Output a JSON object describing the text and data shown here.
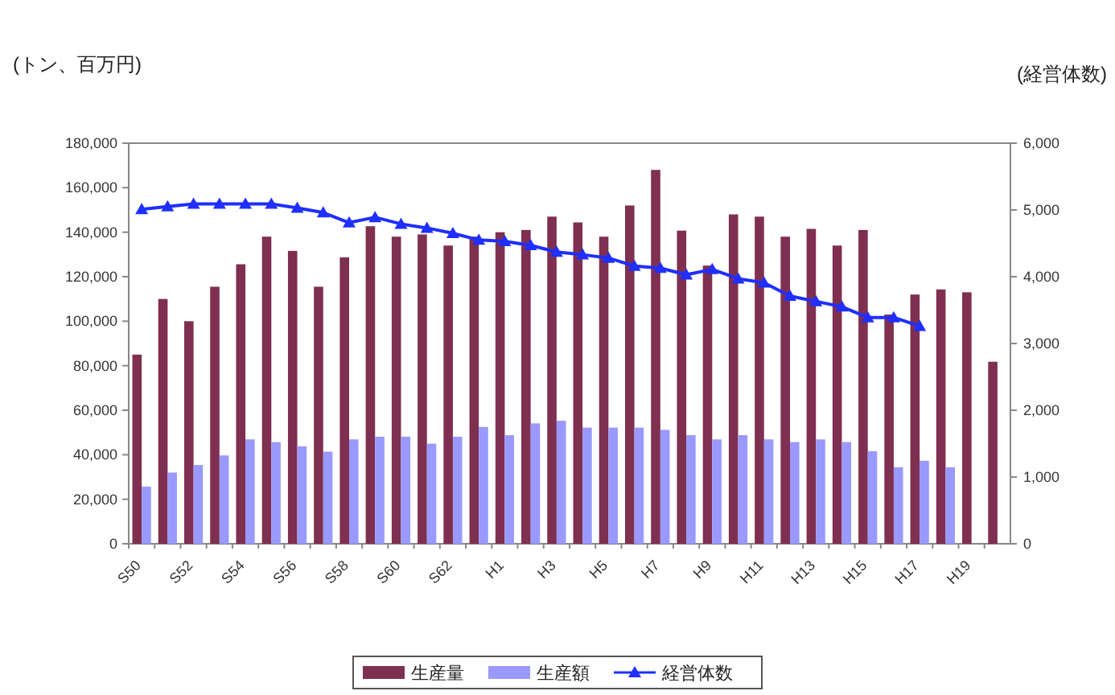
{
  "chart_data": {
    "type": "bar",
    "ylabel": "(トン、百万円)",
    "y2label": "(経営体数)",
    "categories": [
      "S50",
      null,
      "S52",
      null,
      "S54",
      null,
      "S56",
      null,
      "S58",
      null,
      "S60",
      null,
      "S62",
      null,
      "H1",
      null,
      "H3",
      null,
      "H5",
      null,
      "H7",
      null,
      "H9",
      null,
      "H11",
      null,
      "H13",
      null,
      "H15",
      null,
      "H17",
      null,
      "H19",
      null
    ],
    "series": [
      {
        "name": "生産量",
        "color": "#7f2f4f",
        "values": [
          85000,
          110000,
          100000,
          115500,
          125600,
          138000,
          131600,
          115500,
          128700,
          142700,
          138000,
          139000,
          134000,
          138000,
          140000,
          141000,
          147000,
          144400,
          138000,
          152000,
          168000,
          140700,
          125000,
          148000,
          147000,
          138000,
          141500,
          134000,
          141000,
          103000,
          112000,
          114300,
          113000,
          81800
        ]
      },
      {
        "name": "生産額",
        "color": "#9999ff",
        "values": [
          25700,
          32000,
          35400,
          39700,
          46900,
          45700,
          43800,
          41400,
          46900,
          48100,
          48100,
          45000,
          48100,
          52500,
          48800,
          54100,
          55300,
          52200,
          52200,
          52200,
          51200,
          48800,
          46900,
          48800,
          46900,
          45700,
          46900,
          45700,
          41600,
          34400,
          37300,
          34400,
          null,
          null
        ]
      },
      {
        "name": "経営体数",
        "type": "line",
        "axis": "y2",
        "color": "#1f2fff",
        "marker": "triangle",
        "values": [
          5010,
          5050,
          5090,
          5090,
          5090,
          5090,
          5030,
          4960,
          4810,
          4890,
          4790,
          4730,
          4650,
          4550,
          4530,
          4470,
          4370,
          4330,
          4280,
          4160,
          4130,
          4030,
          4110,
          3970,
          3910,
          3710,
          3630,
          3550,
          3390,
          3390,
          3260,
          null,
          null,
          null
        ]
      }
    ],
    "ylim": [
      0,
      180000
    ],
    "yticks": [
      0,
      {
        "value": 20000,
        "label": "20,000"
      },
      {
        "value": 40000,
        "label": "40,000"
      },
      {
        "value": 60000,
        "label": "60,000"
      },
      {
        "value": 80000,
        "label": "80,000"
      },
      {
        "value": 100000,
        "label": "100,000"
      },
      {
        "value": 120000,
        "label": "120,000"
      },
      {
        "value": 140000,
        "label": "140,000"
      },
      {
        "value": 160000,
        "label": "160,000"
      },
      {
        "value": 180000,
        "label": "180,000"
      }
    ],
    "y2lim": [
      0,
      6000
    ],
    "y2ticks": [
      0,
      {
        "value": 1000,
        "label": "1,000"
      },
      {
        "value": 2000,
        "label": "2,000"
      },
      {
        "value": 3000,
        "label": "3,000"
      },
      {
        "value": 4000,
        "label": "4,000"
      },
      {
        "value": 5000,
        "label": "5,000"
      },
      {
        "value": 6000,
        "label": "6,000"
      }
    ],
    "legend": "bottom"
  }
}
